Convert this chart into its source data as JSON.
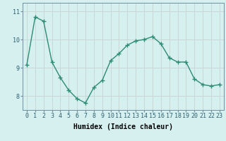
{
  "x": [
    0,
    1,
    2,
    3,
    4,
    5,
    6,
    7,
    8,
    9,
    10,
    11,
    12,
    13,
    14,
    15,
    16,
    17,
    18,
    19,
    20,
    21,
    22,
    23
  ],
  "y": [
    9.1,
    10.8,
    10.65,
    9.2,
    8.65,
    8.2,
    7.9,
    7.75,
    8.3,
    8.55,
    9.25,
    9.5,
    9.8,
    9.95,
    10.0,
    10.1,
    9.85,
    9.35,
    9.2,
    9.2,
    8.6,
    8.4,
    8.35,
    8.4
  ],
  "line_color": "#2e8b74",
  "marker": "+",
  "markersize": 4,
  "linewidth": 1.0,
  "bg_color": "#d6f0f0",
  "grid_color": "#c8d8d4",
  "xlabel": "Humidex (Indice chaleur)",
  "ylim": [
    7.5,
    11.3
  ],
  "xlim": [
    -0.5,
    23.5
  ],
  "yticks": [
    8,
    9,
    10,
    11
  ],
  "xtick_labels": [
    "0",
    "1",
    "2",
    "3",
    "4",
    "5",
    "6",
    "7",
    "8",
    "9",
    "10",
    "11",
    "12",
    "13",
    "14",
    "15",
    "16",
    "17",
    "18",
    "19",
    "20",
    "21",
    "22",
    "23"
  ],
  "xlabel_fontsize": 7,
  "tick_fontsize": 6,
  "markeredgewidth": 1.0
}
